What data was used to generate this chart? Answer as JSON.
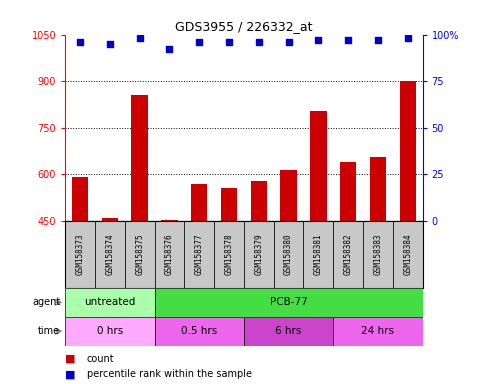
{
  "title": "GDS3955 / 226332_at",
  "samples": [
    "GSM158373",
    "GSM158374",
    "GSM158375",
    "GSM158376",
    "GSM158377",
    "GSM158378",
    "GSM158379",
    "GSM158380",
    "GSM158381",
    "GSM158382",
    "GSM158383",
    "GSM158384"
  ],
  "counts": [
    590,
    460,
    855,
    452,
    568,
    557,
    578,
    613,
    803,
    640,
    655,
    900
  ],
  "percentile_ranks": [
    96,
    95,
    98,
    92,
    96,
    96,
    96,
    96,
    97,
    97,
    97,
    98
  ],
  "ylim_left": [
    450,
    1050
  ],
  "ylim_right": [
    0,
    100
  ],
  "yticks_left": [
    450,
    600,
    750,
    900,
    1050
  ],
  "ytick_labels_left": [
    "450",
    "600",
    "750",
    "900",
    "1050"
  ],
  "yticks_right": [
    0,
    25,
    50,
    75,
    100
  ],
  "ytick_labels_right": [
    "0",
    "25",
    "50",
    "75",
    "100%"
  ],
  "bar_color": "#cc0000",
  "dot_color": "#0000cc",
  "agent_groups": [
    {
      "label": "untreated",
      "start": 0,
      "end": 3,
      "color": "#aaffaa"
    },
    {
      "label": "PCB-77",
      "start": 3,
      "end": 12,
      "color": "#44dd44"
    }
  ],
  "time_groups": [
    {
      "label": "0 hrs",
      "start": 0,
      "end": 3,
      "color": "#ffaaff"
    },
    {
      "label": "0.5 hrs",
      "start": 3,
      "end": 6,
      "color": "#ee66ee"
    },
    {
      "label": "6 hrs",
      "start": 6,
      "end": 9,
      "color": "#cc44cc"
    },
    {
      "label": "24 hrs",
      "start": 9,
      "end": 12,
      "color": "#ee66ee"
    }
  ],
  "legend_count_color": "#cc0000",
  "legend_dot_color": "#0000cc",
  "sample_bg": "#c8c8c8",
  "border_color": "#555555",
  "grid_dot_color": "#555555"
}
